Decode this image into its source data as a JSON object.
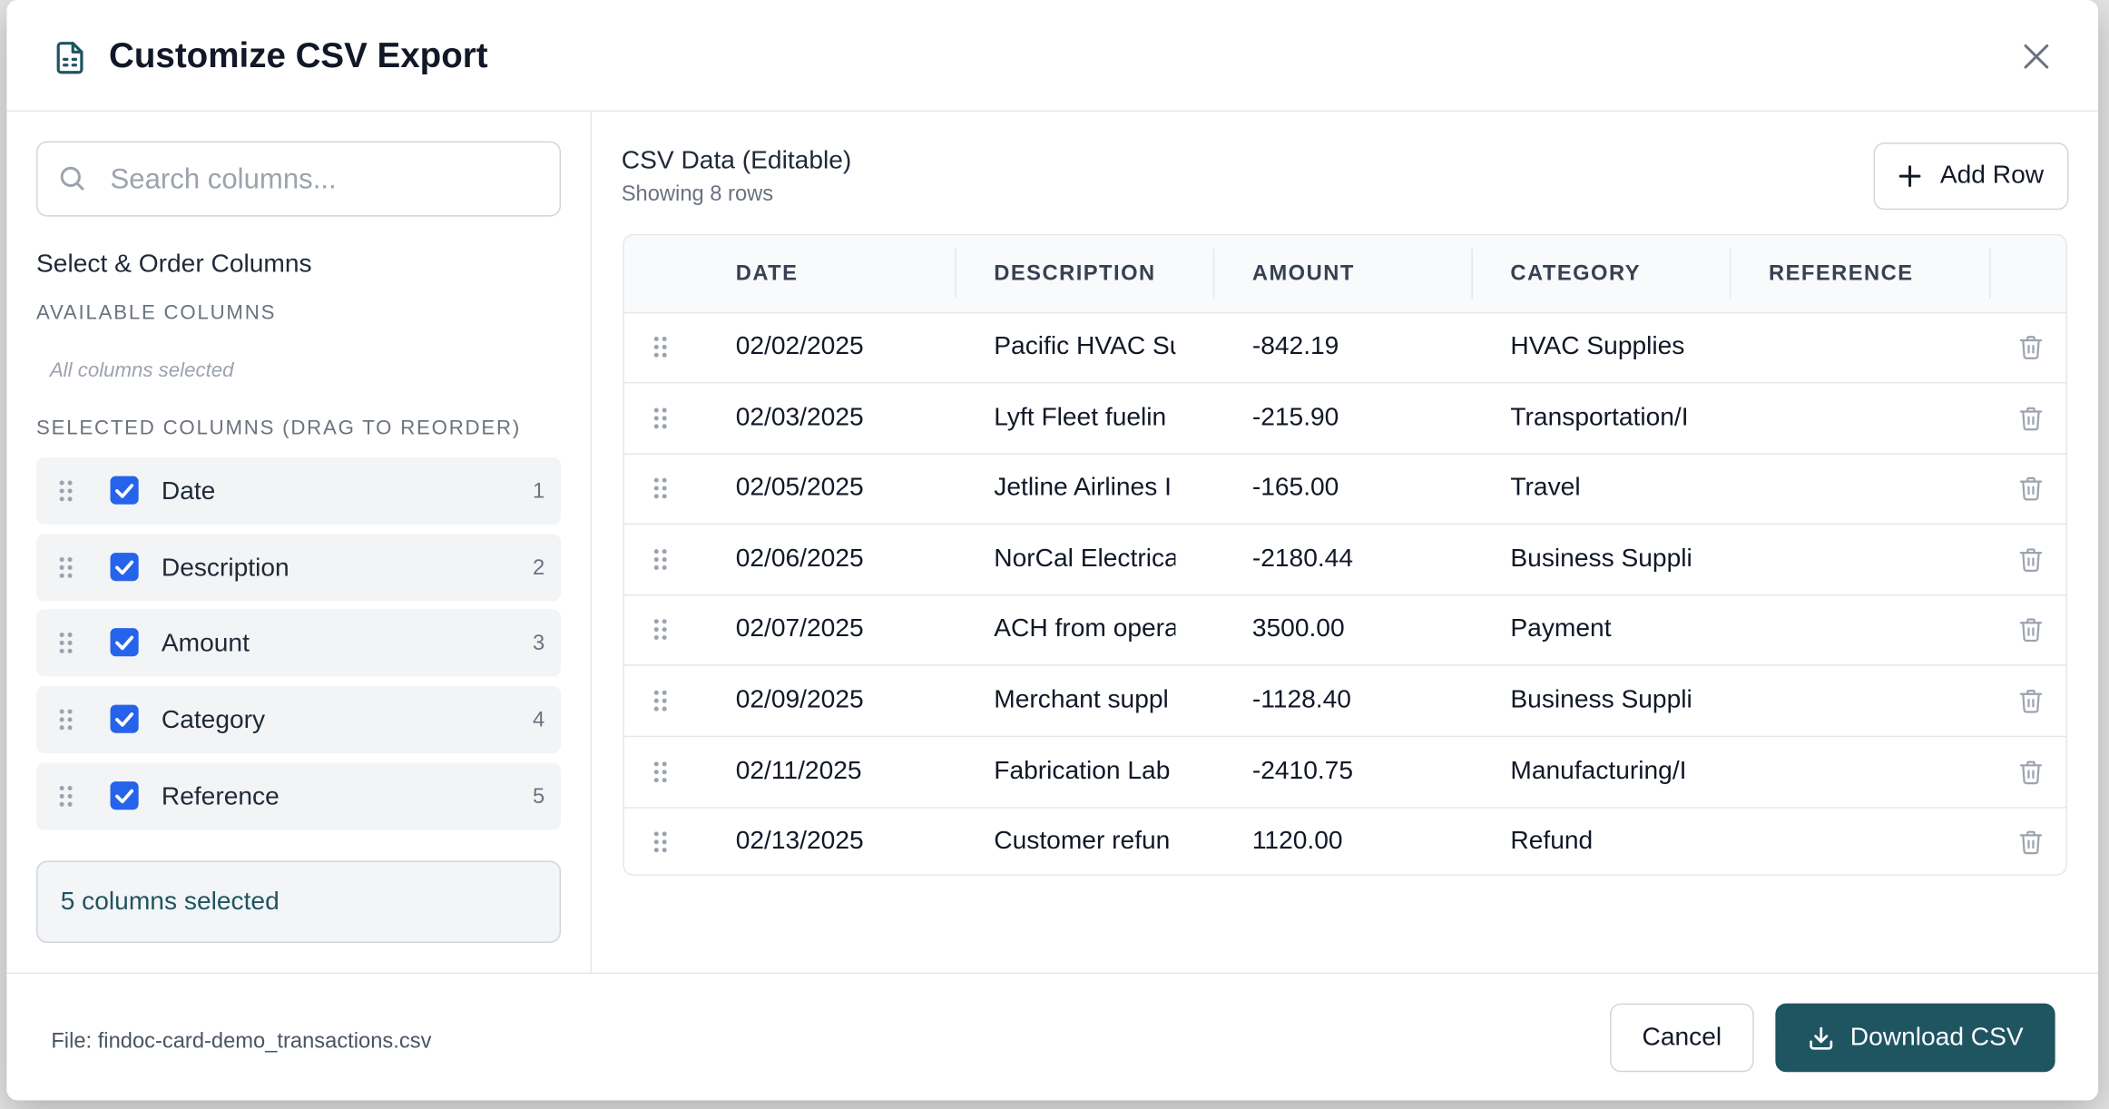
{
  "header": {
    "title": "Customize CSV Export"
  },
  "sidebar": {
    "search_placeholder": "Search columns...",
    "heading": "Select & Order Columns",
    "available_label": "AVAILABLE COLUMNS",
    "available_empty": "All columns selected",
    "selected_label": "SELECTED COLUMNS (DRAG TO REORDER)",
    "selected_columns": [
      {
        "name": "Date",
        "order": 1
      },
      {
        "name": "Description",
        "order": 2
      },
      {
        "name": "Amount",
        "order": 3
      },
      {
        "name": "Category",
        "order": 4
      },
      {
        "name": "Reference",
        "order": 5
      }
    ],
    "summary": "5 columns selected"
  },
  "table": {
    "title": "CSV Data (Editable)",
    "subtitle": "Showing 8 rows",
    "add_row": "Add Row",
    "headers": [
      "DATE",
      "DESCRIPTION",
      "AMOUNT",
      "CATEGORY",
      "REFERENCE"
    ],
    "rows": [
      [
        "02/02/2025",
        "Pacific HVAC Su",
        "-842.19",
        "HVAC Supplies"
      ],
      [
        "02/03/2025",
        "Lyft Fleet fuelin",
        "-215.90",
        "Transportation/I"
      ],
      [
        "02/05/2025",
        "Jetline Airlines I",
        "-165.00",
        "Travel"
      ],
      [
        "02/06/2025",
        "NorCal Electrica",
        "-2180.44",
        "Business Suppli"
      ],
      [
        "02/07/2025",
        "ACH from opera",
        "3500.00",
        "Payment"
      ],
      [
        "02/09/2025",
        "Merchant suppl",
        "-1128.40",
        "Business Suppli"
      ],
      [
        "02/11/2025",
        "Fabrication Lab",
        "-2410.75",
        "Manufacturing/I"
      ],
      [
        "02/13/2025",
        "Customer refun",
        "1120.00",
        "Refund"
      ]
    ]
  },
  "footer": {
    "file": "File: findoc-card-demo_transactions.csv",
    "cancel": "Cancel",
    "download": "Download CSV"
  }
}
